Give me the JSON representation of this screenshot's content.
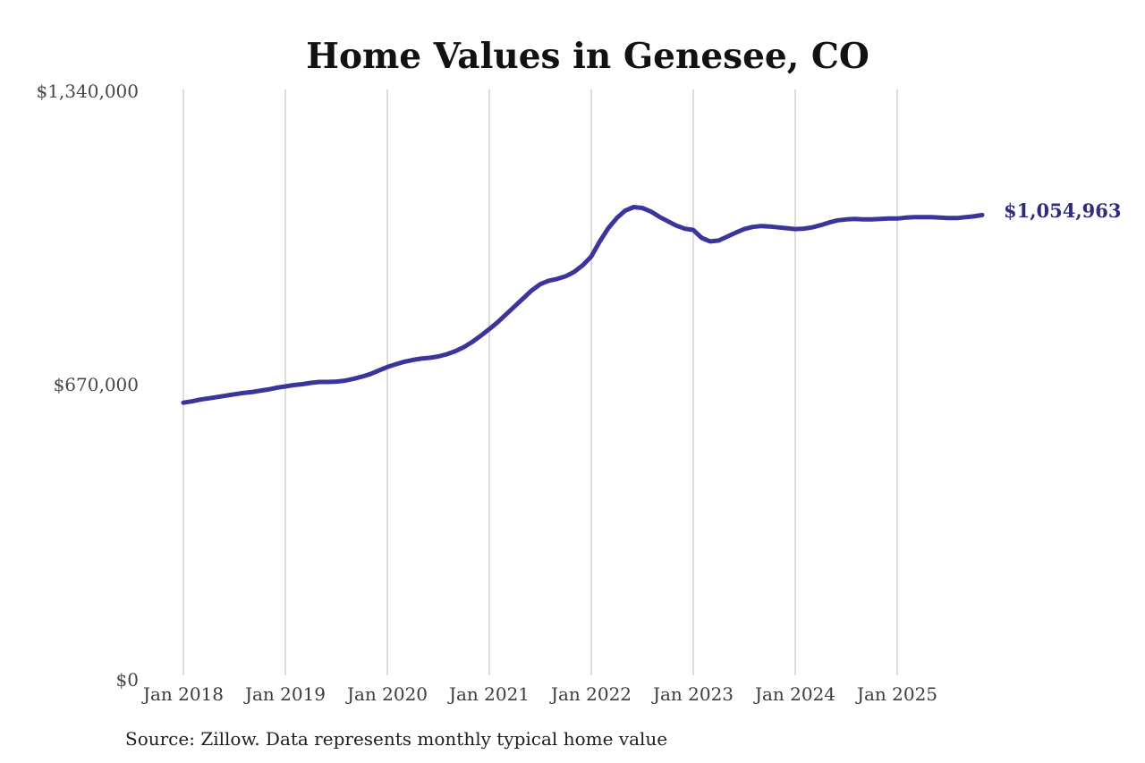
{
  "title": "Home Values in Genesee, CO",
  "source_note": "Source: Zillow. Data represents monthly typical home value",
  "end_value_label": "$1,054,963",
  "colors": {
    "line": "#3a349b",
    "end_label": "#2e2b80",
    "grid": "#c9c9c9",
    "background": "#ffffff"
  },
  "chart_data": {
    "type": "line",
    "title": "Home Values in Genesee, CO",
    "xlabel": "",
    "ylabel": "",
    "x_tick_labels": [
      "Jan 2018",
      "Jan 2019",
      "Jan 2020",
      "Jan 2021",
      "Jan 2022",
      "Jan 2023",
      "Jan 2024",
      "Jan 2025"
    ],
    "y_tick_labels": [
      "$0",
      "$670,000",
      "$1,340,000"
    ],
    "y_tick_values": [
      0,
      670000,
      1340000
    ],
    "ylim": [
      0,
      1340000
    ],
    "grid": "vertical-only",
    "legend": "none",
    "frequency": "monthly",
    "x_start": "Jan 2018",
    "x_end": "Nov 2025",
    "end_value": 1054963,
    "series": [
      {
        "name": "Typical home value",
        "values": [
          629000,
          632000,
          636000,
          639000,
          642000,
          645000,
          648000,
          651000,
          653000,
          656000,
          659000,
          663000,
          666000,
          669000,
          671000,
          674000,
          676000,
          676000,
          677000,
          679000,
          683000,
          688000,
          694000,
          702000,
          710000,
          716000,
          722000,
          726000,
          729000,
          731000,
          734000,
          739000,
          746000,
          755000,
          767000,
          781000,
          796000,
          812000,
          830000,
          848000,
          866000,
          884000,
          898000,
          906000,
          910000,
          916000,
          926000,
          941000,
          961000,
          995000,
          1025000,
          1048000,
          1065000,
          1073000,
          1071000,
          1063000,
          1051000,
          1041000,
          1031000,
          1024000,
          1021000,
          1003000,
          995000,
          997000,
          1006000,
          1015000,
          1023000,
          1028000,
          1030000,
          1029000,
          1027000,
          1025000,
          1023000,
          1024000,
          1027000,
          1032000,
          1038000,
          1043000,
          1045000,
          1046000,
          1045000,
          1045000,
          1046000,
          1047000,
          1047000,
          1049000,
          1050000,
          1050000,
          1050000,
          1049000,
          1048000,
          1048000,
          1050000,
          1052000,
          1054963
        ]
      }
    ]
  }
}
